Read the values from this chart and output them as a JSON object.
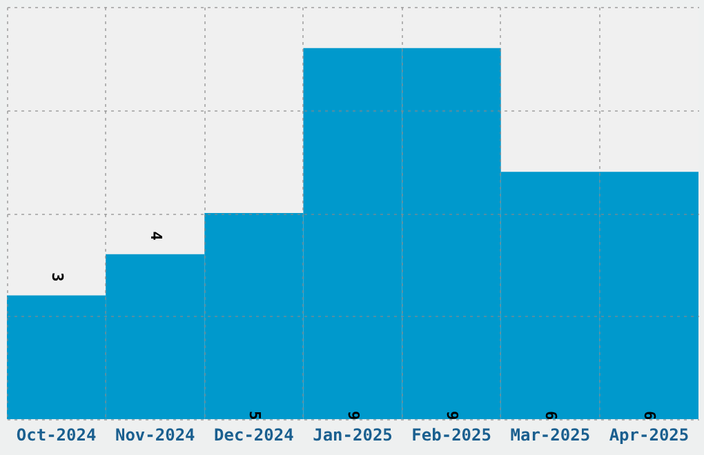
{
  "chart_data": {
    "type": "bar",
    "categories": [
      "Oct-2024",
      "Nov-2024",
      "Dec-2024",
      "Jan-2025",
      "Feb-2025",
      "Mar-2025",
      "Apr-2025"
    ],
    "values": [
      3,
      4,
      5,
      9,
      9,
      6,
      6
    ],
    "color": "#0099cc",
    "ylim": [
      0,
      10
    ],
    "yticks": [
      0,
      2.5,
      5,
      7.5,
      10
    ],
    "grid": true,
    "tick_labels": "x",
    "data_labels": true
  }
}
